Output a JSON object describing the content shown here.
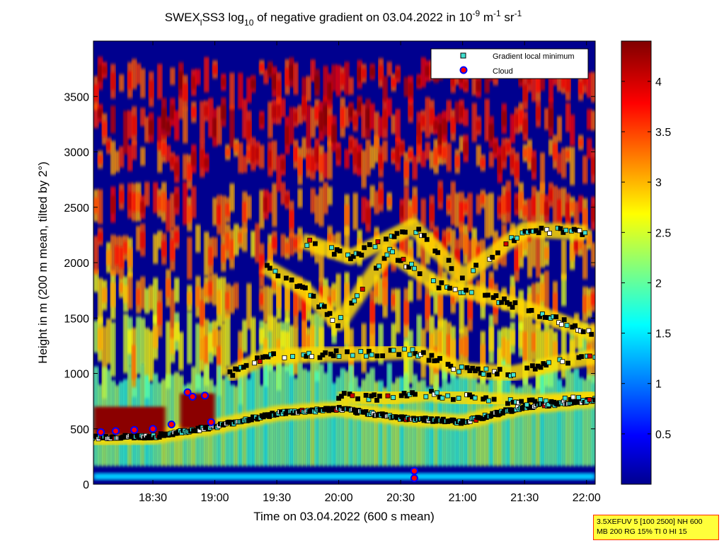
{
  "chart_data": {
    "type": "heatmap",
    "title": {
      "prefix": "SWEX",
      "sub": "l",
      "name": "SS3 log",
      "log_base": "10",
      "rest": " of negative gradient on 03.04.2022 in 10",
      "exp1": "-9",
      "unit1": " m",
      "exp2": "-1",
      "unit2": " sr",
      "exp3": "-1"
    },
    "xlabel": "Time on 03.04.2022 (600 s mean)",
    "ylabel": "Height in m (200 m mean, tilted by 2°)",
    "x_range_hours": [
      18.02,
      22.07
    ],
    "ylim": [
      0,
      4000
    ],
    "x_ticks": [
      {
        "value": 18.5,
        "label": "18:30"
      },
      {
        "value": 19.0,
        "label": "19:00"
      },
      {
        "value": 19.5,
        "label": "19:30"
      },
      {
        "value": 20.0,
        "label": "20:00"
      },
      {
        "value": 20.5,
        "label": "20:30"
      },
      {
        "value": 21.0,
        "label": "21:00"
      },
      {
        "value": 21.5,
        "label": "21:30"
      },
      {
        "value": 22.0,
        "label": "22:00"
      }
    ],
    "y_ticks": [
      {
        "value": 0,
        "label": "0"
      },
      {
        "value": 500,
        "label": "500"
      },
      {
        "value": 1000,
        "label": "1000"
      },
      {
        "value": 1500,
        "label": "1500"
      },
      {
        "value": 2000,
        "label": "2000"
      },
      {
        "value": 2500,
        "label": "2500"
      },
      {
        "value": 3000,
        "label": "3000"
      },
      {
        "value": 3500,
        "label": "3500"
      }
    ],
    "colorbar": {
      "colormap": "jet",
      "range": [
        0,
        4.4
      ],
      "ticks": [
        {
          "value": 0.5,
          "label": "0.5"
        },
        {
          "value": 1.0,
          "label": "1"
        },
        {
          "value": 1.5,
          "label": "1.5"
        },
        {
          "value": 2.0,
          "label": "2"
        },
        {
          "value": 2.5,
          "label": "2.5"
        },
        {
          "value": 3.0,
          "label": "3"
        },
        {
          "value": 3.5,
          "label": "3.5"
        },
        {
          "value": 4.0,
          "label": "4"
        }
      ]
    },
    "legend": {
      "placement": "top-right",
      "entries": [
        {
          "label": "Gradient local minimum",
          "marker": "square",
          "color": "#40e0d0",
          "edge": "#000000"
        },
        {
          "label": "Cloud",
          "marker": "circle",
          "color": "#ff0000",
          "edge": "#0000ff"
        }
      ]
    },
    "layers": [
      {
        "name": "layer-1",
        "t": [
          18.0,
          18.5,
          19.0,
          19.5,
          20.0,
          20.5,
          21.0,
          21.5,
          22.07
        ],
        "z": [
          420,
          430,
          520,
          640,
          680,
          600,
          560,
          700,
          760
        ]
      },
      {
        "name": "layer-2",
        "t": [
          19.1,
          19.4,
          19.8,
          20.2,
          20.6,
          21.0,
          21.4,
          21.8,
          22.07
        ],
        "z": [
          980,
          1150,
          1170,
          1180,
          1200,
          1030,
          1000,
          1100,
          1150
        ]
      },
      {
        "name": "layer-3",
        "t": [
          19.4,
          19.7,
          20.0,
          20.4,
          20.8,
          21.2,
          21.6,
          22.07
        ],
        "z": [
          1970,
          1780,
          1450,
          2100,
          1800,
          1700,
          1550,
          1350
        ]
      },
      {
        "name": "layer-4",
        "t": [
          19.7,
          20.1,
          20.6,
          21.0,
          21.5,
          22.0
        ],
        "z": [
          2200,
          2050,
          2330,
          1870,
          2300,
          2270
        ]
      },
      {
        "name": "layer-5",
        "t": [
          20.0,
          20.4,
          20.7,
          21.2,
          21.6,
          22.07
        ],
        "z": [
          800,
          780,
          820,
          760,
          740,
          780
        ]
      }
    ],
    "clouds": [
      {
        "t": 18.08,
        "z": 470
      },
      {
        "t": 18.2,
        "z": 480
      },
      {
        "t": 18.35,
        "z": 490
      },
      {
        "t": 18.5,
        "z": 500
      },
      {
        "t": 18.65,
        "z": 540
      },
      {
        "t": 18.78,
        "z": 830
      },
      {
        "t": 18.82,
        "z": 790
      },
      {
        "t": 18.92,
        "z": 800
      },
      {
        "t": 18.97,
        "z": 560
      },
      {
        "t": 20.61,
        "z": 120
      },
      {
        "t": 20.61,
        "z": 55
      }
    ]
  },
  "info_box": {
    "line1": "3.5XEFUV 5 [100 2500] NH 600",
    "line2": "MB 200 RG 15% TI 0 HI 15"
  }
}
